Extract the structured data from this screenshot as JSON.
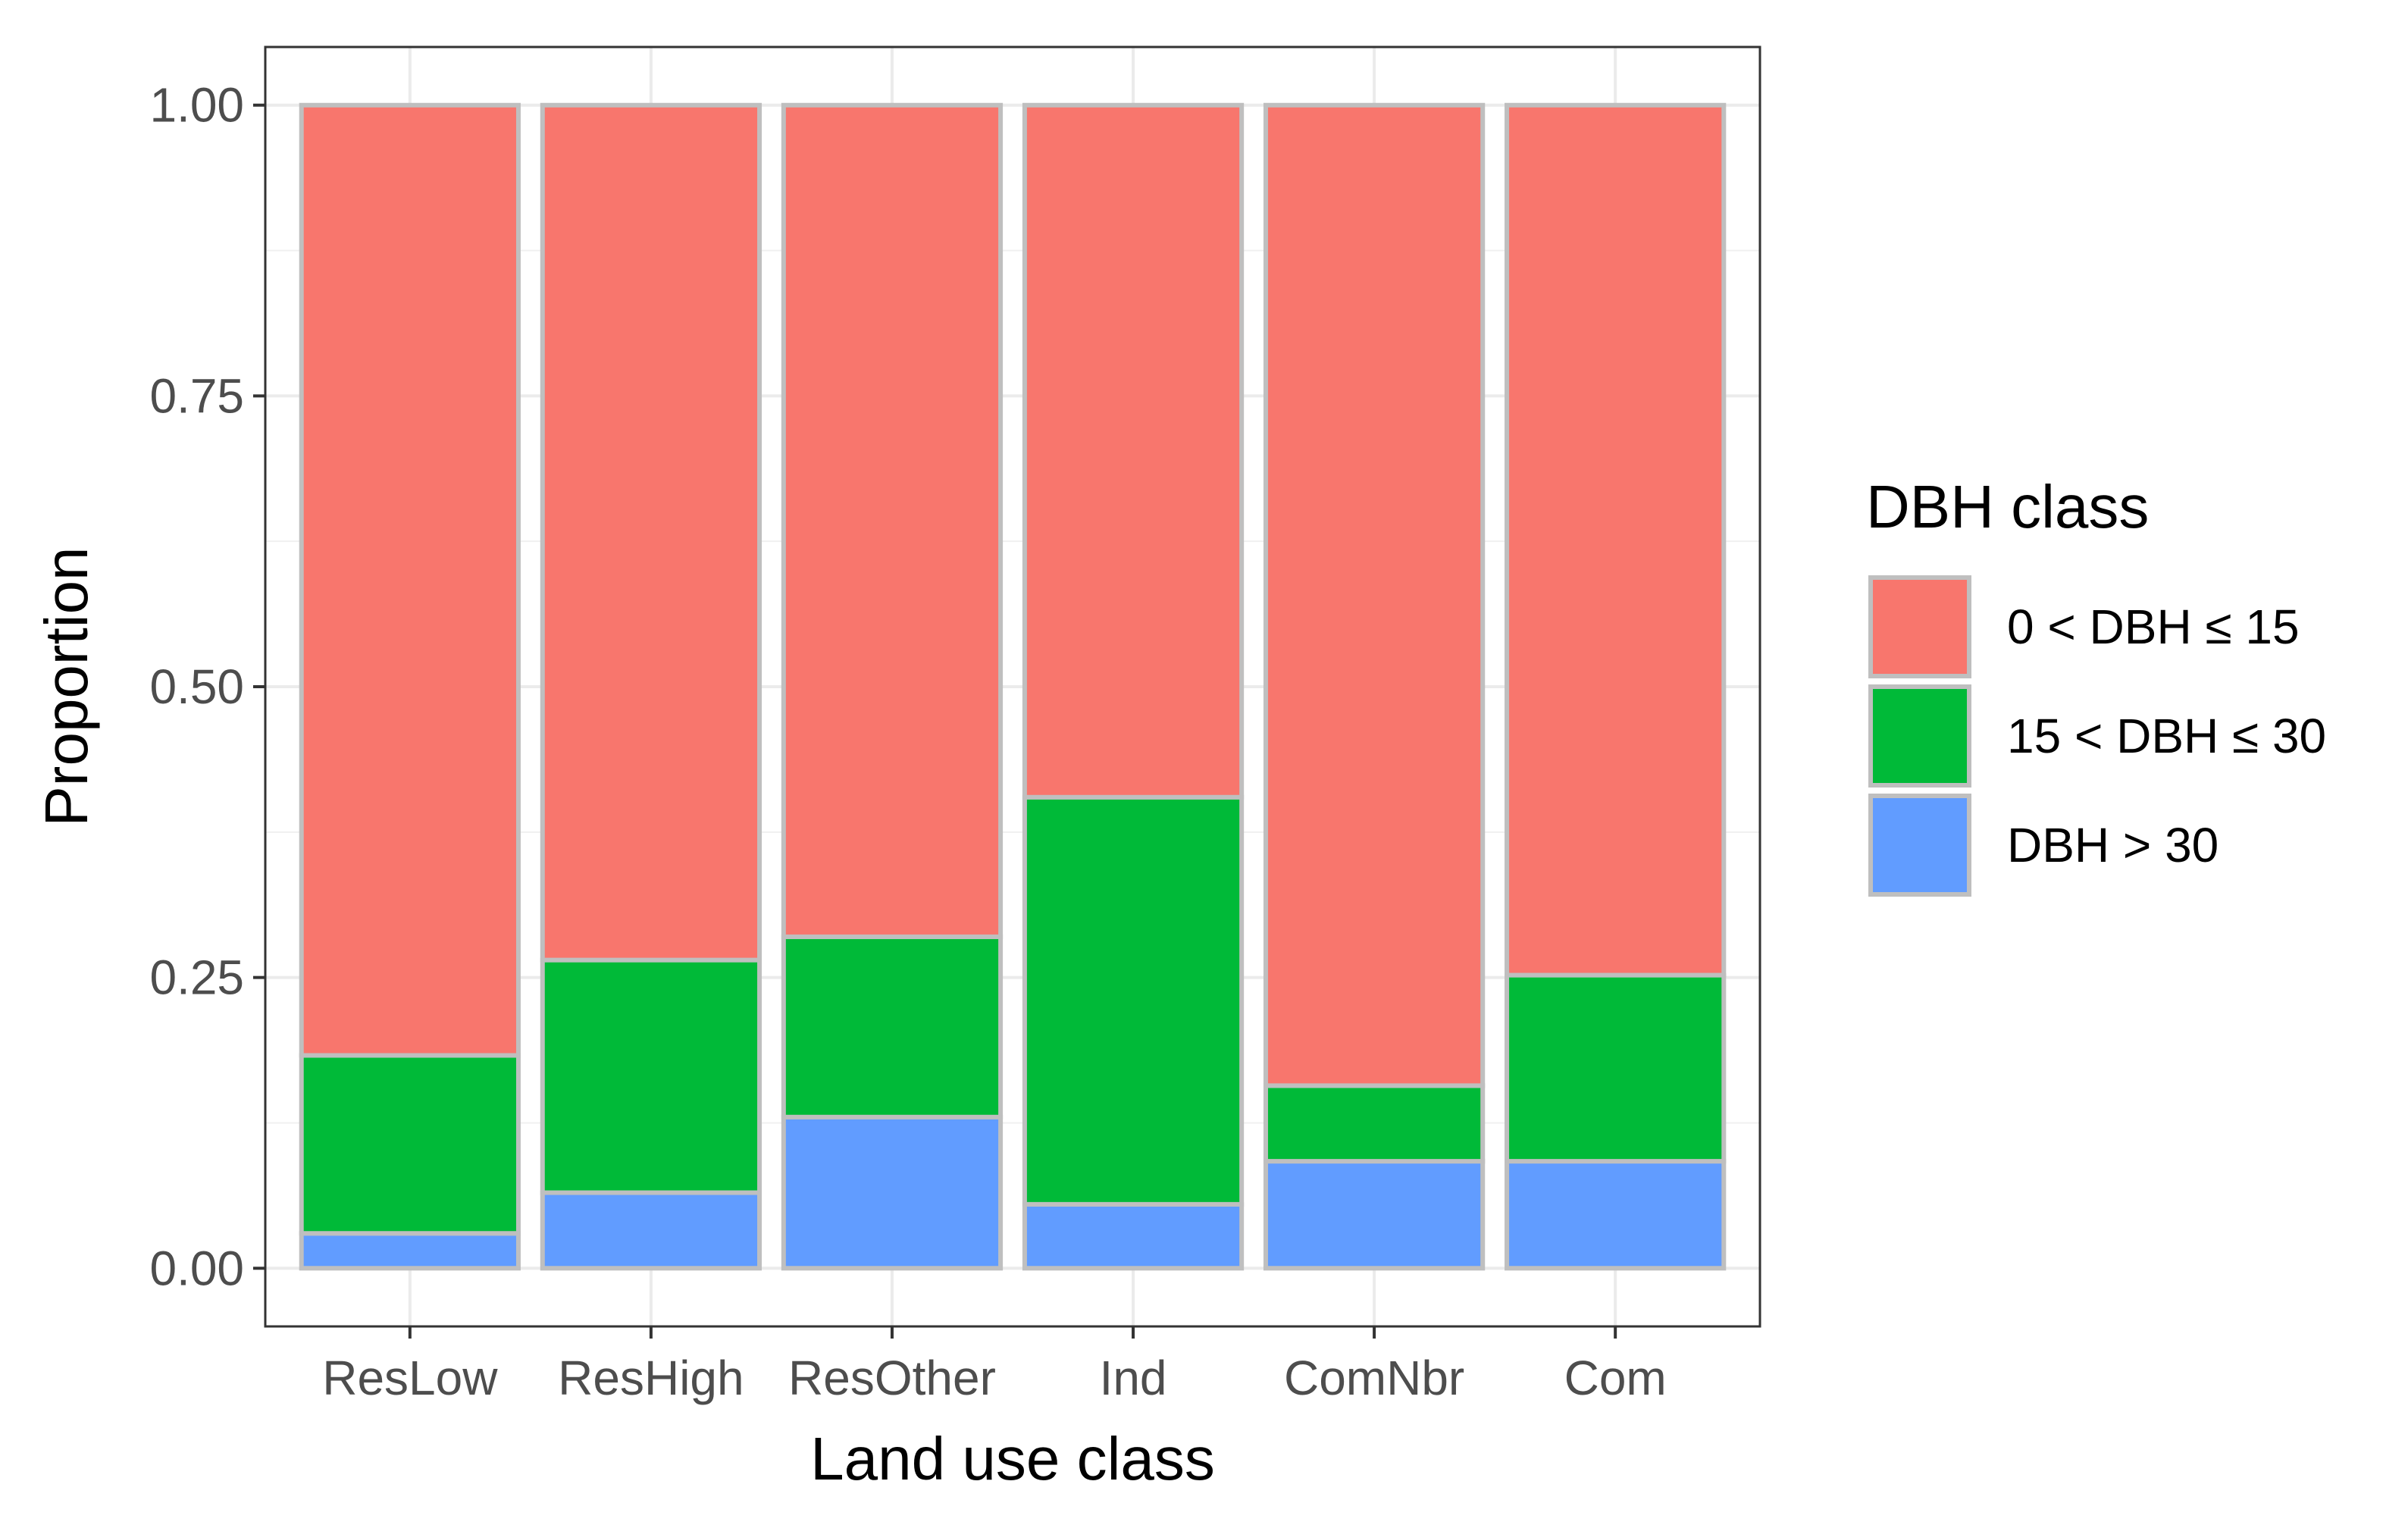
{
  "chart_data": {
    "type": "bar",
    "stacked": true,
    "title": "",
    "xlabel": "Land use class",
    "ylabel": "Proportion",
    "ylim": [
      -0.05,
      1.05
    ],
    "yticks": [
      0.0,
      0.25,
      0.5,
      0.75,
      1.0
    ],
    "ytick_labels": [
      "0.00",
      "0.25",
      "0.50",
      "0.75",
      "1.00"
    ],
    "grid": true,
    "categories": [
      "ResLow",
      "ResHigh",
      "ResOther",
      "Ind",
      "ComNbr",
      "Com"
    ],
    "series": [
      {
        "name": "DBH > 30",
        "color": "#619CFF",
        "values": [
          0.03,
          0.065,
          0.13,
          0.055,
          0.092,
          0.092
        ]
      },
      {
        "name": "15 < DBH ≤ 30",
        "color": "#00BA38",
        "values": [
          0.153,
          0.2,
          0.155,
          0.35,
          0.065,
          0.16
        ]
      },
      {
        "name": "0 < DBH ≤ 15",
        "color": "#F8766D",
        "values": [
          0.817,
          0.735,
          0.715,
          0.595,
          0.843,
          0.748
        ]
      }
    ],
    "legend": {
      "title": "DBH class",
      "placement": "right",
      "entries": [
        "0 < DBH ≤ 15",
        "15 < DBH ≤ 30",
        "DBH > 30"
      ]
    }
  }
}
